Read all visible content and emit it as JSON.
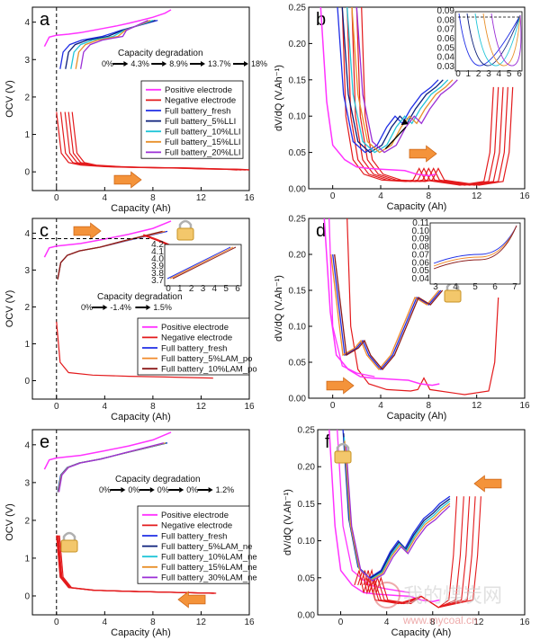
{
  "colors": {
    "positive": "#ff33ff",
    "negative": "#e31a1c",
    "fresh": "#1f2ee6",
    "s1": "#0b1f7a",
    "s2": "#22c5d8",
    "s3": "#e8902a",
    "s4": "#9b2fd6",
    "lam_po_5": "#f08a2a",
    "lam_po_10": "#8b1a1a",
    "arrow": "#f4933a"
  },
  "icons": {
    "lock": "padlock-icon",
    "arrow": "orange-arrow-icon"
  },
  "watermark": {
    "site": "www.mycoal.cn",
    "brand": "我的煤炭网"
  },
  "chart_data": [
    {
      "panel": "a",
      "type": "line",
      "xlabel": "Capacity (Ah)",
      "ylabel": "OCV (V)",
      "xlim": [
        -2,
        16
      ],
      "ylim": [
        -0.5,
        4.4
      ],
      "xticks": [
        "0",
        "4",
        "8",
        "12",
        "16"
      ],
      "yticks": [
        "0",
        "1",
        "2",
        "3",
        "4"
      ],
      "annotation_title": "Capacity degradation",
      "sequence": [
        "0%",
        "4.3%",
        "8.9%",
        "13.7%",
        "18%"
      ],
      "legend": [
        "Positive electrode",
        "Negative electrode",
        "Full battery_fresh",
        "Full battery_5%LLI",
        "Full battery_10%LLI",
        "Full battery_15%LLI",
        "Full battery_20%LLI"
      ],
      "series": [
        {
          "name": "Positive electrode",
          "x": [
            -1.0,
            -0.6,
            0,
            1,
            2,
            3,
            4,
            5,
            6,
            7,
            8,
            9,
            9.5
          ],
          "y": [
            3.35,
            3.6,
            3.65,
            3.68,
            3.72,
            3.78,
            3.84,
            3.9,
            3.97,
            4.05,
            4.13,
            4.24,
            4.33
          ]
        },
        {
          "name": "Negative electrode",
          "x": [
            0,
            0.4,
            1,
            2,
            4,
            6,
            8,
            10,
            12,
            14,
            15
          ],
          "y": [
            1.6,
            0.5,
            0.25,
            0.18,
            0.14,
            0.12,
            0.11,
            0.1,
            0.08,
            0.07,
            0.05
          ]
        },
        {
          "name": "Full battery_fresh",
          "x": [
            0.3,
            0.7,
            1.5,
            3,
            5,
            7,
            8.4
          ],
          "y": [
            2.75,
            3.2,
            3.4,
            3.55,
            3.7,
            3.9,
            4.05
          ]
        }
      ]
    },
    {
      "panel": "b",
      "type": "line",
      "xlabel": "Capacity (Ah)",
      "ylabel": "dV/dQ (V.Ah⁻¹)",
      "xlim": [
        -2,
        16
      ],
      "ylim": [
        0,
        0.25
      ],
      "xticks": [
        "0",
        "4",
        "8",
        "12",
        "16"
      ],
      "yticks": [
        "0.00",
        "0.05",
        "0.10",
        "0.15",
        "0.20",
        "0.25"
      ],
      "inset": {
        "xticks": [
          "0",
          "1",
          "2",
          "3",
          "4",
          "5",
          "6"
        ],
        "yticks": [
          "0.03",
          "0.04",
          "0.05",
          "0.06",
          "0.07",
          "0.08",
          "0.09"
        ]
      },
      "series": [
        {
          "name": "Positive electrode",
          "x": [
            -1.0,
            -0.5,
            0,
            1,
            2,
            3,
            4,
            5,
            6,
            7,
            8,
            8.6
          ],
          "y": [
            0.25,
            0.12,
            0.06,
            0.04,
            0.03,
            0.028,
            0.027,
            0.026,
            0.025,
            0.02,
            0.018,
            0.02
          ]
        },
        {
          "name": "Full battery_fresh",
          "x": [
            0.3,
            1,
            2,
            3,
            4,
            4.8,
            5.5,
            6.5,
            7.5,
            8.5
          ],
          "y": [
            0.25,
            0.09,
            0.05,
            0.045,
            0.07,
            0.1,
            0.09,
            0.11,
            0.13,
            0.15
          ]
        }
      ]
    },
    {
      "panel": "c",
      "type": "line",
      "xlabel": "Capacity (Ah)",
      "ylabel": "OCV (V)",
      "xlim": [
        -2,
        16
      ],
      "ylim": [
        -0.5,
        4.4
      ],
      "xticks": [
        "0",
        "4",
        "8",
        "12",
        "16"
      ],
      "yticks": [
        "0",
        "1",
        "2",
        "3",
        "4"
      ],
      "annotation_title": "Capacity degradation",
      "sequence": [
        "0%",
        "-1.4%",
        "1.5%"
      ],
      "legend": [
        "Positive electrode",
        "Negative electrode",
        "Full battery_fresh",
        "Full battery_5%LAM_po",
        "Full battery_10%LAM_po"
      ],
      "inset": {
        "xticks": [
          "0",
          "1",
          "2",
          "3",
          "4",
          "5",
          "6"
        ],
        "yticks": [
          "3.7",
          "3.8",
          "3.9",
          "4.0",
          "4.1",
          "4.2"
        ]
      },
      "series": [
        {
          "name": "Positive electrode",
          "x": [
            -1.0,
            -0.6,
            0,
            2,
            4,
            6,
            8,
            9.5
          ],
          "y": [
            3.35,
            3.6,
            3.65,
            3.72,
            3.84,
            3.97,
            4.13,
            4.33
          ]
        },
        {
          "name": "Negative electrode",
          "x": [
            0,
            0.3,
            1,
            3,
            6,
            9,
            13
          ],
          "y": [
            1.6,
            0.5,
            0.22,
            0.15,
            0.12,
            0.1,
            0.07
          ]
        }
      ]
    },
    {
      "panel": "d",
      "type": "line",
      "xlabel": "Capacity (Ah)",
      "ylabel": "dV/dQ (V.Ah⁻¹)",
      "xlim": [
        -2,
        16
      ],
      "ylim": [
        0,
        0.25
      ],
      "xticks": [
        "0",
        "4",
        "8",
        "12",
        "16"
      ],
      "yticks": [
        "0.00",
        "0.05",
        "0.10",
        "0.15",
        "0.20",
        "0.25"
      ],
      "inset": {
        "xticks": [
          "3",
          "4",
          "5",
          "6",
          "7"
        ],
        "yticks": [
          "0.04",
          "0.05",
          "0.06",
          "0.07",
          "0.08",
          "0.09",
          "0.10",
          "0.11"
        ]
      },
      "series": [
        {
          "name": "Full battery_fresh",
          "x": [
            0,
            1,
            2,
            2.5,
            3,
            4,
            5,
            6,
            7,
            8,
            9
          ],
          "y": [
            0.2,
            0.06,
            0.07,
            0.08,
            0.06,
            0.04,
            0.06,
            0.1,
            0.14,
            0.13,
            0.15
          ]
        }
      ]
    },
    {
      "panel": "e",
      "type": "line",
      "xlabel": "Capacity (Ah)",
      "ylabel": "OCV (V)",
      "xlim": [
        -2,
        16
      ],
      "ylim": [
        -0.5,
        4.4
      ],
      "xticks": [
        "0",
        "4",
        "8",
        "12",
        "16"
      ],
      "yticks": [
        "0",
        "1",
        "2",
        "3",
        "4"
      ],
      "annotation_title": "Capacity degradation",
      "sequence": [
        "0%",
        "0%",
        "0%",
        "0%",
        "1.2%"
      ],
      "legend": [
        "Positive electrode",
        "Negative electrode",
        "Full battery_fresh",
        "Full battery_5%LAM_ne",
        "Full battery_10%LAM_ne",
        "Full battery_15%LAM_ne",
        "Full battery_30%LAM_ne"
      ],
      "series": [
        {
          "name": "Positive electrode",
          "x": [
            -1.0,
            -0.6,
            0,
            2,
            4,
            6,
            8,
            9.5
          ],
          "y": [
            3.35,
            3.6,
            3.65,
            3.72,
            3.84,
            3.97,
            4.13,
            4.33
          ]
        },
        {
          "name": "Negative electrode",
          "x": [
            0,
            0.3,
            1,
            3,
            6,
            9,
            13
          ],
          "y": [
            1.6,
            0.5,
            0.22,
            0.15,
            0.12,
            0.1,
            0.07
          ]
        }
      ]
    },
    {
      "panel": "f",
      "type": "line",
      "xlabel": "Capacity (Ah)",
      "ylabel": "dV/dQ (V.Ah⁻¹)",
      "xlim": [
        -2,
        16
      ],
      "ylim": [
        0,
        0.25
      ],
      "xticks": [
        "0",
        "4",
        "8",
        "12",
        "16"
      ],
      "yticks": [
        "0.00",
        "0.05",
        "0.10",
        "0.15",
        "0.20",
        "0.25"
      ],
      "series": [
        {
          "name": "Full battery_fresh",
          "x": [
            0.2,
            1,
            2,
            3,
            4,
            5,
            6,
            7,
            8,
            8.6
          ],
          "y": [
            0.25,
            0.09,
            0.05,
            0.04,
            0.05,
            0.08,
            0.1,
            0.12,
            0.13,
            0.14
          ]
        }
      ]
    }
  ]
}
